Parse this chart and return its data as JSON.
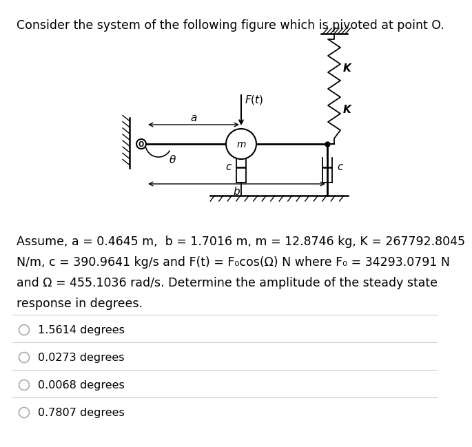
{
  "title": "Consider the system of the following figure which is pivoted at point O.",
  "desc_line1": "Assume, a = 0.4645 m,  b = 1.7016 m, m = 12.8746 kg, K = 267792.8045",
  "desc_line2": "N/m, c = 390.9641 kg/s and F(t) = F₀cos(Ω) N where F₀ = 34293.0791 N",
  "desc_line3": "and Ω = 455.1036 rad/s. Determine the amplitude of the steady state",
  "desc_line4": "response in degrees.",
  "options": [
    "1.5614 degrees",
    "0.0273 degrees",
    "0.0068 degrees",
    "0.7807 degrees"
  ],
  "bg_color": "#ffffff",
  "text_color": "#000000"
}
